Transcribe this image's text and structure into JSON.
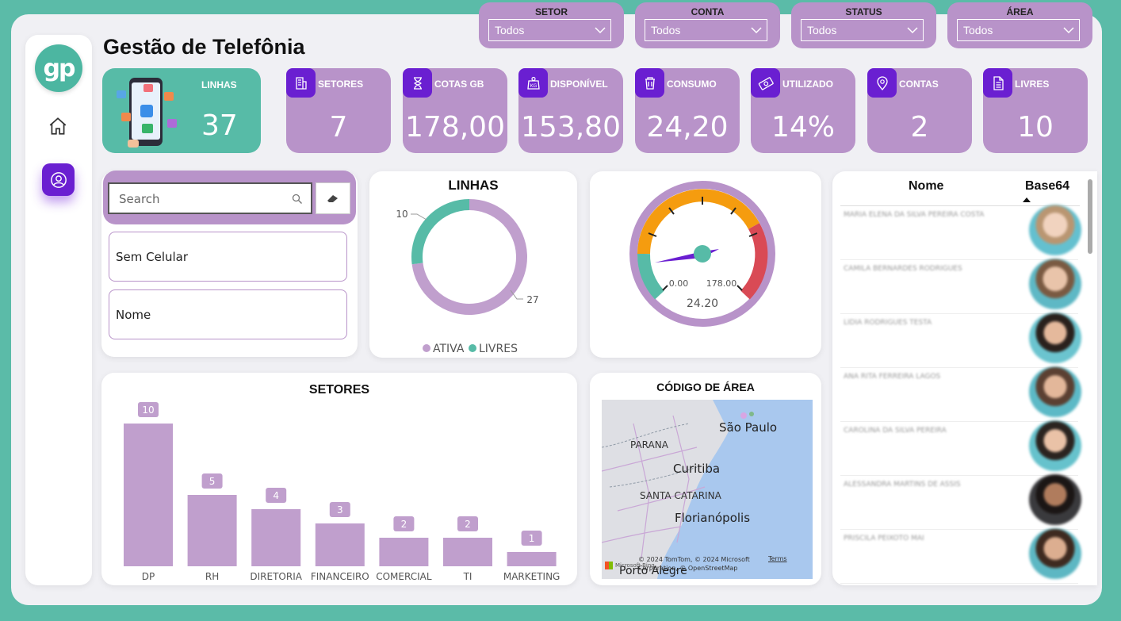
{
  "header": {
    "title": "Gestão de Telefônia"
  },
  "filters": [
    {
      "label": "SETOR",
      "value": "Todos"
    },
    {
      "label": "CONTA",
      "value": "Todos"
    },
    {
      "label": "STATUS",
      "value": "Todos"
    },
    {
      "label": "ÁREA",
      "value": "Todos"
    }
  ],
  "kpi_main": {
    "label": "LINHAS",
    "value": "37"
  },
  "kpis": [
    {
      "label": "SETORES",
      "value": "7",
      "icon": "building-icon"
    },
    {
      "label": "COTAS GB",
      "value": "178,00",
      "icon": "hourglass-icon"
    },
    {
      "label": "DISPONÍVEL",
      "value": "153,80",
      "icon": "weight-icon"
    },
    {
      "label": "CONSUMO",
      "value": "24,20",
      "icon": "trash-icon"
    },
    {
      "label": "UTILIZADO",
      "value": "14%",
      "icon": "money-icon"
    },
    {
      "label": "CONTAS",
      "value": "2",
      "icon": "location-icon"
    },
    {
      "label": "LIVRES",
      "value": "10",
      "icon": "document-icon"
    }
  ],
  "search": {
    "placeholder": "Search"
  },
  "slicer_items": [
    "Sem Celular",
    "Nome"
  ],
  "donut": {
    "title": "LINHAS",
    "legend": [
      "ATIVA",
      "LIVRES"
    ],
    "label_ativa": "27",
    "label_livres": "10"
  },
  "gauge": {
    "min": "0.00",
    "max": "178.00",
    "value": "24.20"
  },
  "table": {
    "col_nome": "Nome",
    "col_base64": "Base64"
  },
  "map": {
    "title": "CÓDIGO DE ÁREA",
    "labels": {
      "sp": "São Paulo",
      "pr": "PARANA",
      "cwb": "Curitiba",
      "sc": "SANTA CATARINA",
      "flp": "Florianópolis",
      "poa": "Porto Alegre"
    },
    "copyright": "© 2024 TomTom, © 2024 Microsoft Corporation, © OpenStreetMap",
    "terms": "Terms",
    "brand": "Microsoft Bing"
  },
  "chart_data": [
    {
      "type": "pie",
      "title": "LINHAS",
      "categories": [
        "ATIVA",
        "LIVRES"
      ],
      "values": [
        27,
        10
      ],
      "colors": [
        "#c09fcd",
        "#57bba7"
      ]
    },
    {
      "type": "bar",
      "title": "SETORES",
      "categories": [
        "DP",
        "RH",
        "DIRETORIA",
        "FINANCEIRO",
        "COMERCIAL",
        "TI",
        "MARKETING"
      ],
      "values": [
        10,
        5,
        4,
        3,
        2,
        2,
        1
      ],
      "color": "#c09fcd"
    }
  ],
  "colors": {
    "accent": "#6a1fd1",
    "lilac": "#b893c9",
    "teal": "#57bba7",
    "gauge_orange": "#f59c0f",
    "gauge_red": "#d94a55"
  }
}
